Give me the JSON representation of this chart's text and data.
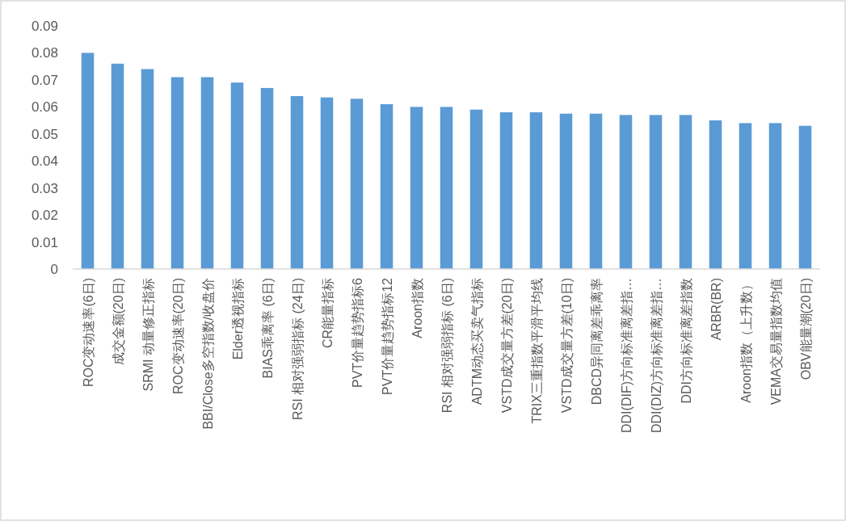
{
  "chart_data": {
    "type": "bar",
    "categories": [
      "ROC变动速率(6日)",
      "成交金额(20日)",
      "SRMI 动量修正指标",
      "ROC变动速率(20日)",
      "BBI/Close多空指数/收盘价",
      "Elder透视指标",
      "BIAS乖离率 (6日)",
      "RSI 相对强弱指标 (24日)",
      "CR能量指标",
      "PVT价量趋势指标6",
      "PVT价量趋势指标12",
      "Aroon指数",
      "RSI 相对强弱指标 (6日)",
      "ADTM动态买卖气指标",
      "VSTD成交量方差(20日)",
      "TRIX三重指数平滑平均线",
      "VSTD成交量方差(10日)",
      "DBCD异同离差乖离率",
      "DDI(DIF)方向标准离差指…",
      "DDI(DIZ)方向标准离差指…",
      "DDI方向标准离差指数",
      "ARBR(BR)",
      "Aroon指数（上升数）",
      "VEMA交易量指数均值",
      "OBV能量潮(20日)"
    ],
    "values": [
      0.08,
      0.076,
      0.074,
      0.071,
      0.071,
      0.069,
      0.067,
      0.064,
      0.0635,
      0.063,
      0.061,
      0.06,
      0.06,
      0.059,
      0.058,
      0.058,
      0.0575,
      0.0575,
      0.057,
      0.057,
      0.057,
      0.055,
      0.054,
      0.054,
      0.053
    ],
    "color": "#5b9bd5",
    "ylim": [
      0,
      0.09
    ],
    "yticks": [
      0,
      0.01,
      0.02,
      0.03,
      0.04,
      0.05,
      0.06,
      0.07,
      0.08,
      0.09
    ],
    "grid": false
  }
}
